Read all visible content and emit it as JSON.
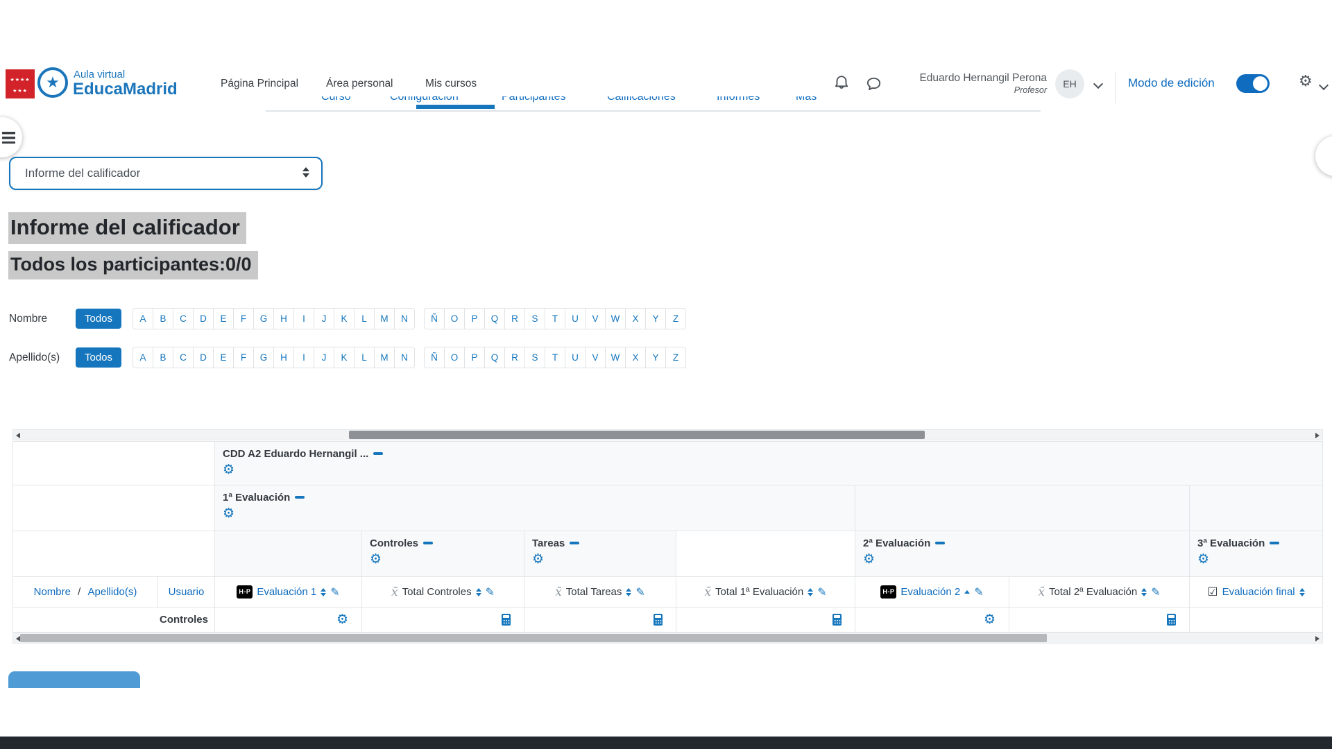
{
  "header": {
    "brand": {
      "line1": "Aula virtual",
      "line2": "EducaMadrid"
    },
    "nav": [
      "Página Principal",
      "Área personal",
      "Mis cursos"
    ],
    "user": {
      "name": "Eduardo Hernangil Perona",
      "role": "Profesor",
      "initials": "EH"
    },
    "edit_mode_label": "Modo de edición"
  },
  "tabs": {
    "items": [
      "Curso",
      "Configuración",
      "Participantes",
      "Calificaciones",
      "Informes",
      "Más"
    ],
    "active": "Configuración"
  },
  "report_select": {
    "value": "Informe del calificador"
  },
  "headings": {
    "title": "Informe del calificador",
    "subtitle": "Todos los participantes:0/0"
  },
  "filters": {
    "rows": [
      {
        "label": "Nombre",
        "all_label": "Todos",
        "groups": [
          [
            "A",
            "B",
            "C",
            "D",
            "E",
            "F",
            "G",
            "H",
            "I",
            "J",
            "K",
            "L",
            "M",
            "N"
          ],
          [
            "Ñ",
            "O",
            "P",
            "Q",
            "R",
            "S",
            "T",
            "U",
            "V",
            "W",
            "X",
            "Y",
            "Z"
          ]
        ]
      },
      {
        "label": "Apellido(s)",
        "all_label": "Todos",
        "groups": [
          [
            "A",
            "B",
            "C",
            "D",
            "E",
            "F",
            "G",
            "H",
            "I",
            "J",
            "K",
            "L",
            "M",
            "N"
          ],
          [
            "Ñ",
            "O",
            "P",
            "Q",
            "R",
            "S",
            "T",
            "U",
            "V",
            "W",
            "X",
            "Y",
            "Z"
          ]
        ]
      }
    ]
  },
  "grader_table": {
    "course_title": "CDD A2 Eduardo Hernangil ...",
    "category_title": "1ª Evaluación",
    "band3_titles": [
      "Controles",
      "Tareas",
      "2ª Evaluación",
      "3ª Evaluación"
    ],
    "columns": [
      {
        "label": "Nombre / Apellido(s)",
        "parts": [
          "Nombre",
          " / ",
          "Apellido(s)"
        ],
        "icon": null,
        "sort": null,
        "pencil": false,
        "link": true
      },
      {
        "label": "Usuario",
        "icon": null,
        "sort": null,
        "pencil": false,
        "link": true
      },
      {
        "label": "Evaluación 1",
        "icon": "h5p",
        "sort": "both",
        "pencil": true,
        "link": true
      },
      {
        "label": "Total Controles",
        "icon": "mean",
        "sort": "both",
        "pencil": true,
        "link": false
      },
      {
        "label": "Total Tareas",
        "icon": "mean",
        "sort": "both",
        "pencil": true,
        "link": false
      },
      {
        "label": "Total 1ª Evaluación",
        "icon": "mean",
        "sort": "both",
        "pencil": true,
        "link": false
      },
      {
        "label": "Evaluación 2",
        "icon": "h5p",
        "sort": "asc",
        "pencil": true,
        "link": true
      },
      {
        "label": "Total 2ª Evaluación",
        "icon": "mean",
        "sort": "both",
        "pencil": true,
        "link": false
      },
      {
        "label": "Evaluación final",
        "icon": "checkbox",
        "sort": "both",
        "pencil": false,
        "link": true
      }
    ],
    "controls_row": {
      "label": "Controles",
      "icons": [
        "gear",
        "calc",
        "calc",
        "calc",
        "gear",
        "calc",
        null
      ]
    }
  },
  "colors": {
    "accent_blue": "#1576bd",
    "link_blue": "#0f6cbf",
    "flag_red": "#d2232a",
    "logo_blue": "#1b75bb",
    "highlight_gray": "#c9c9c9",
    "header_cell_bg": "#f8f9fa",
    "footer_band": "#23272e",
    "partial_button": "#4f9bd6"
  }
}
